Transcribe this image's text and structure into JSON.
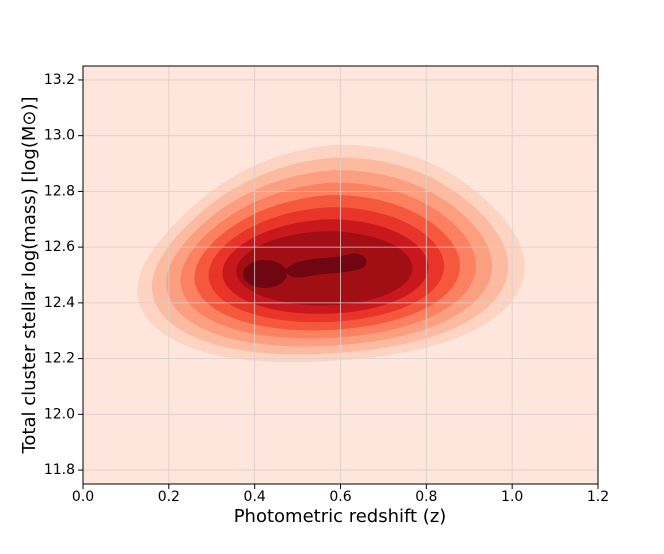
{
  "chart_data": {
    "type": "kde",
    "xlabel": "Photometric redshift (z)",
    "ylabel": "Total cluster stellar log(mass) [log(M⊙)]",
    "xlim": [
      0,
      1.2
    ],
    "ylim": [
      11.75,
      13.25
    ],
    "xticks": [
      {
        "value": 0,
        "label": "0.0"
      },
      0.2,
      0.4,
      0.6,
      0.8,
      {
        "value": 1,
        "label": "1.0"
      },
      1.2
    ],
    "yticks": [
      11.8,
      {
        "value": 12,
        "label": "12.0"
      },
      12.2,
      12.4,
      12.6,
      12.8,
      {
        "value": 13,
        "label": "13.0"
      },
      13.2
    ],
    "grid": true,
    "background": "#fee6dc",
    "level_colors": [
      "#fdd3c1",
      "#fcbba1",
      "#fc9f81",
      "#fb8161",
      "#f6583e",
      "#e83429",
      "#c9181d",
      "#a10f15",
      "#6f0611"
    ]
  }
}
